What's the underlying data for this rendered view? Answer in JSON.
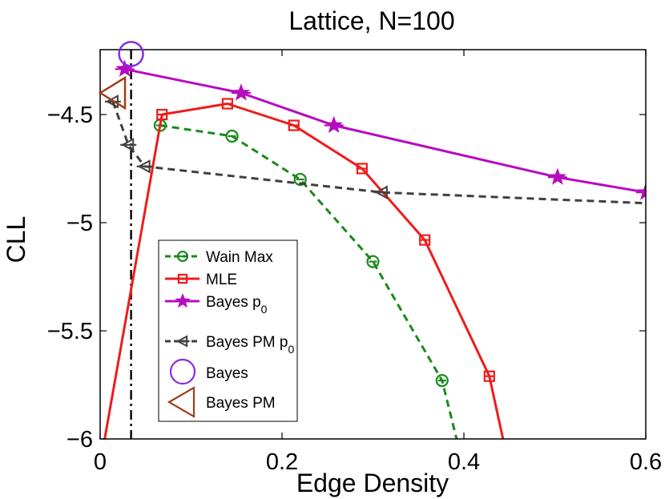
{
  "chart_data": {
    "type": "line",
    "title": "Lattice, N=100",
    "xlabel": "Edge Density",
    "ylabel": "CLL",
    "xlim": [
      0,
      0.6
    ],
    "ylim": [
      -6,
      -4.2
    ],
    "xticks": [
      0,
      0.2,
      0.4,
      0.6
    ],
    "xtick_labels": [
      "0",
      "0.2",
      "0.4",
      "0.6"
    ],
    "yticks": [
      -6,
      -5.5,
      -5,
      -4.5
    ],
    "ytick_labels": [
      "−6",
      "−5.5",
      "−5",
      "−4.5"
    ],
    "grid": false,
    "legend_position": "bottom-left",
    "vertical_reference_line": {
      "x": 0.034,
      "style": "dash-dot",
      "color": "#000000"
    },
    "series": [
      {
        "name": "Wain Max",
        "color": "#1a8a1a",
        "line_style": "dashed",
        "marker": "circle-bar",
        "x": [
          0.066,
          0.145,
          0.22,
          0.3,
          0.376,
          0.392
        ],
        "y": [
          -4.55,
          -4.6,
          -4.8,
          -5.18,
          -5.73,
          -6.0
        ],
        "marker_count": 5
      },
      {
        "name": "MLE",
        "color": "#ee1c1c",
        "line_style": "solid",
        "marker": "square-bar",
        "x": [
          0.005,
          0.068,
          0.14,
          0.213,
          0.288,
          0.357,
          0.428,
          0.443
        ],
        "y": [
          -6.0,
          -4.5,
          -4.45,
          -4.55,
          -4.75,
          -5.08,
          -5.71,
          -6.0
        ],
        "marker_indices": [
          1,
          2,
          3,
          4,
          5,
          6
        ]
      },
      {
        "name": "Bayes p0",
        "label_main": "Bayes p",
        "label_sub": "0",
        "color": "#b60cc0",
        "line_style": "solid",
        "marker": "star",
        "x": [
          0.027,
          0.155,
          0.257,
          0.503,
          0.6
        ],
        "y": [
          -4.29,
          -4.4,
          -4.55,
          -4.79,
          -4.86
        ],
        "marker_indices": [
          0,
          1,
          2,
          3,
          4
        ]
      },
      {
        "name": "Bayes PM p0",
        "label_main": "Bayes PM p",
        "label_sub": "0",
        "color": "#404040",
        "line_style": "dashed",
        "marker": "triangle-left-bar",
        "x": [
          0.014,
          0.031,
          0.049,
          0.31,
          0.6
        ],
        "y": [
          -4.44,
          -4.64,
          -4.74,
          -4.86,
          -4.91
        ],
        "marker_indices": [
          0,
          1,
          2,
          3
        ]
      }
    ],
    "points": [
      {
        "name": "Bayes",
        "x": 0.034,
        "y": -4.22,
        "marker": "circle",
        "color": "#8b2be2"
      },
      {
        "name": "Bayes PM",
        "x": 0.015,
        "y": -4.4,
        "marker": "triangle-left",
        "color": "#a0401a"
      }
    ]
  }
}
